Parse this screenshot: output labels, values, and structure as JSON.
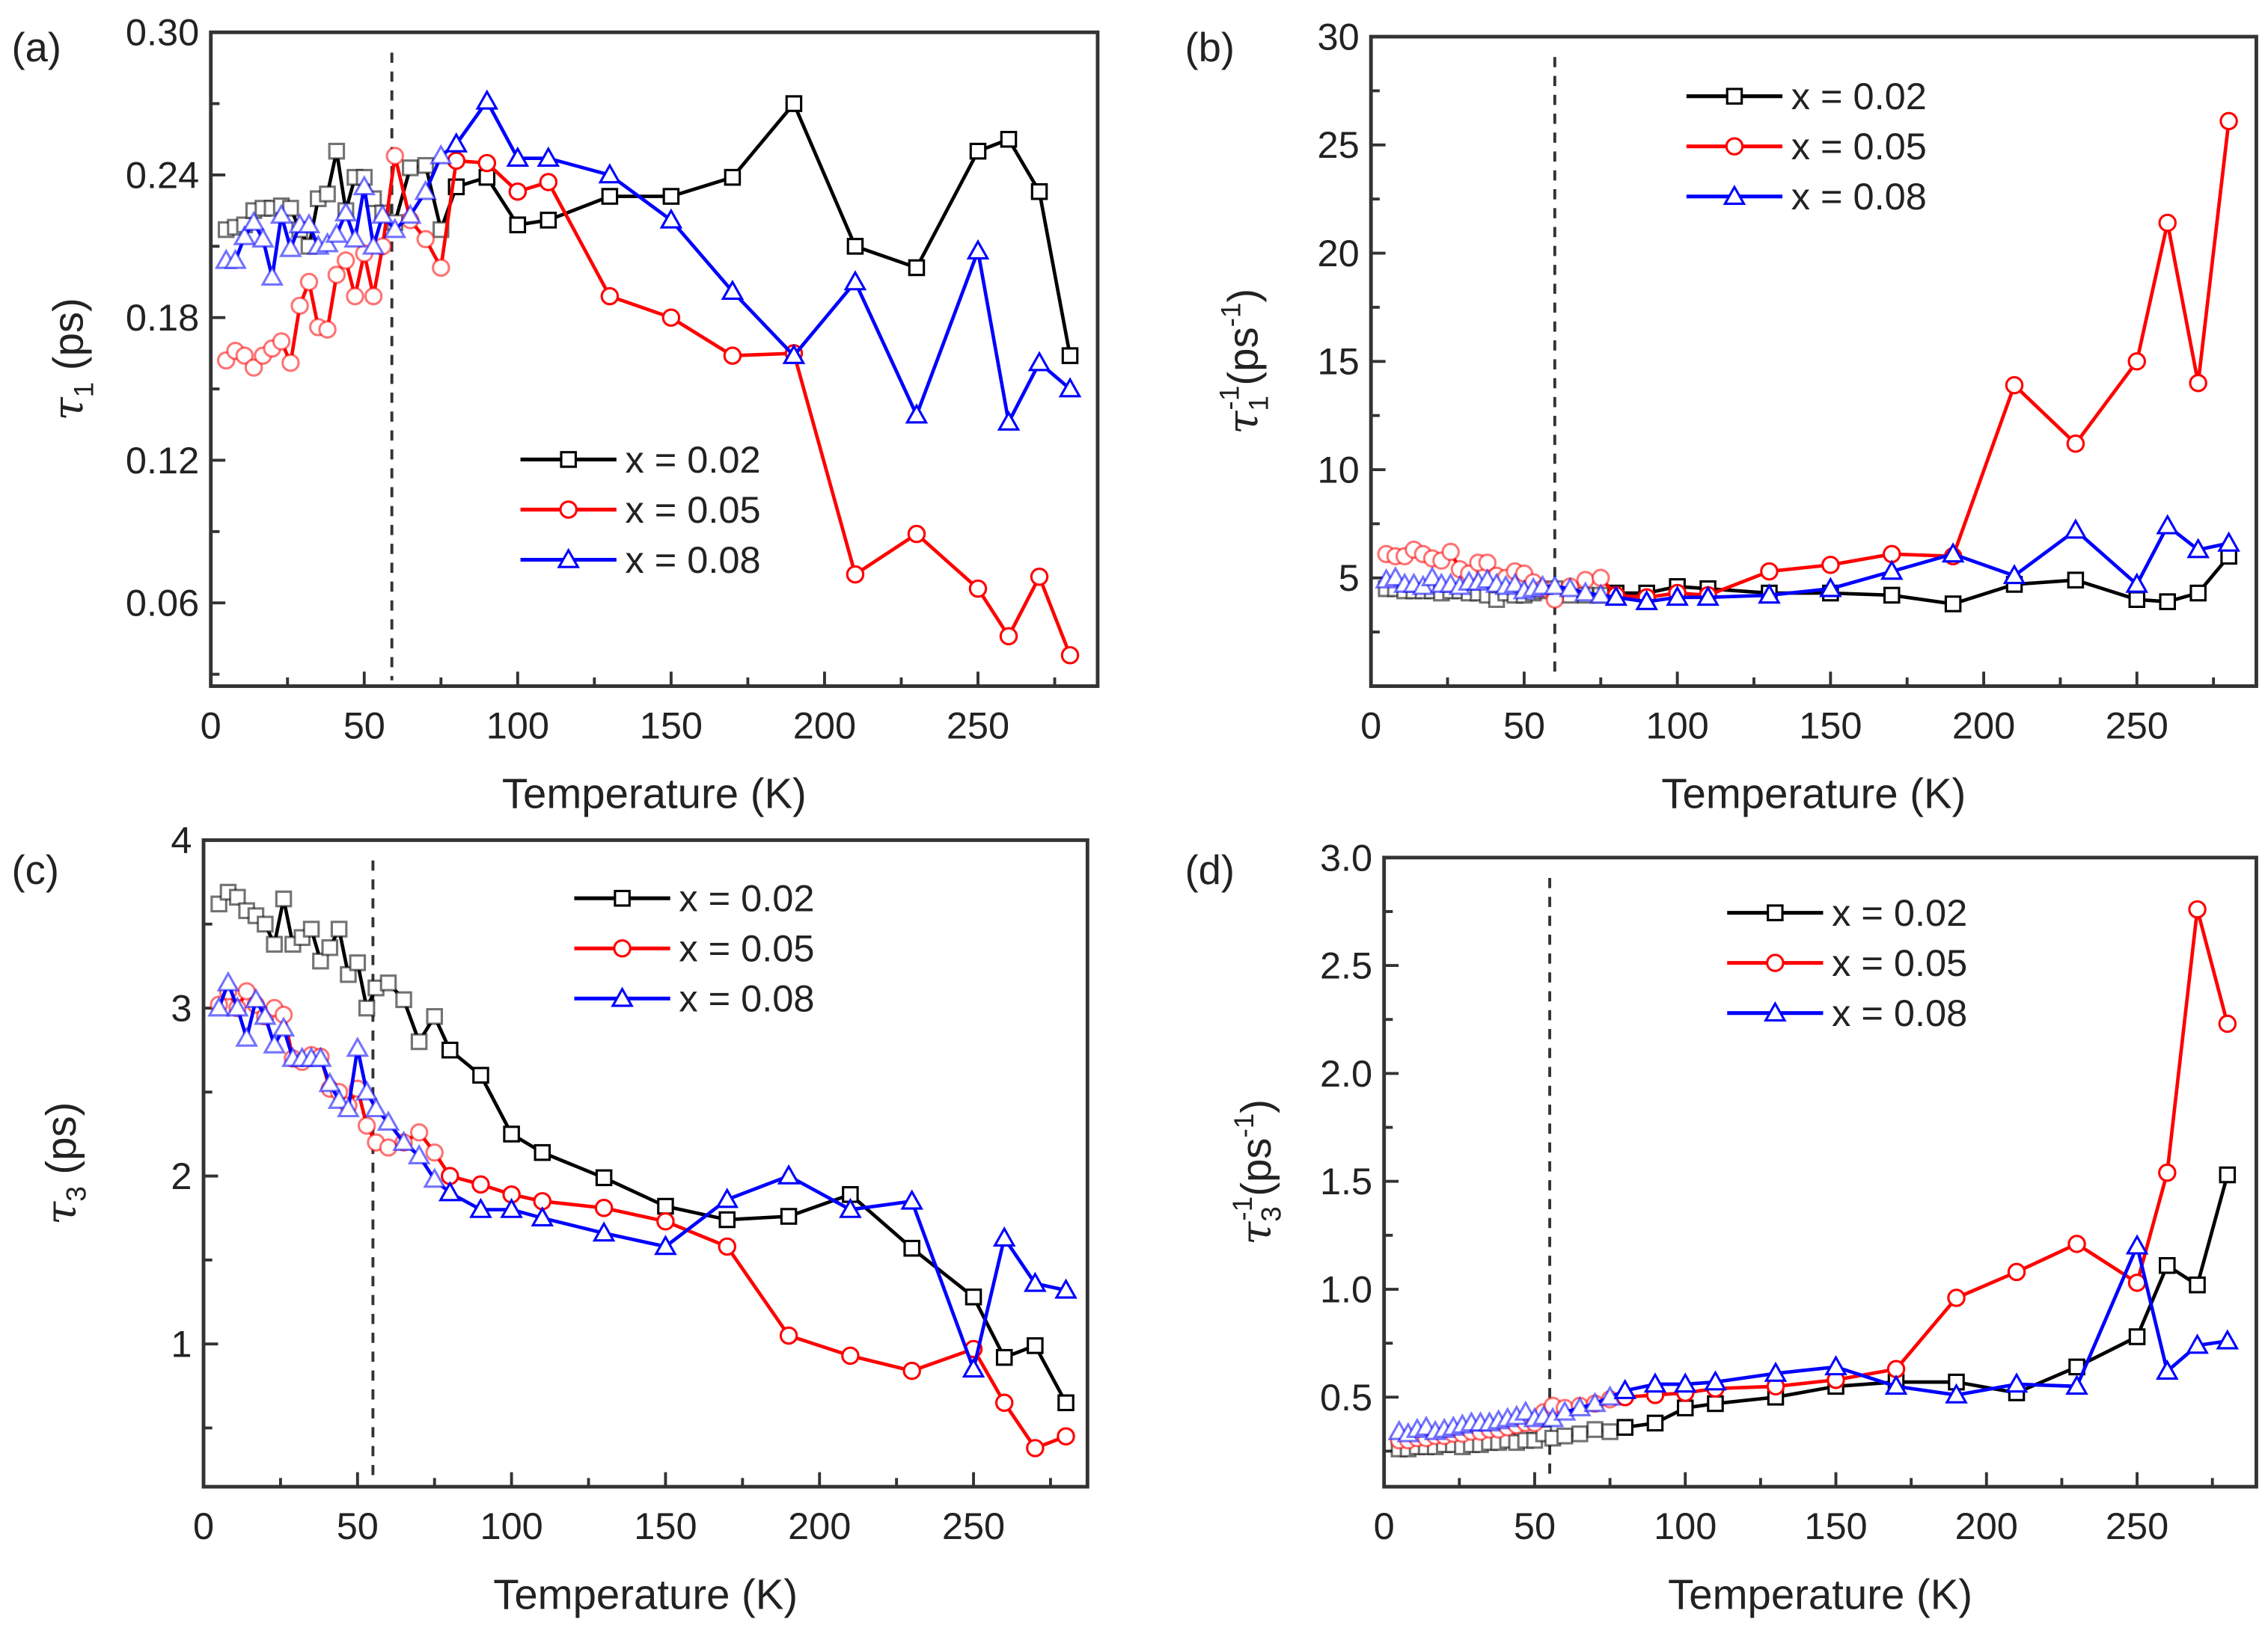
{
  "colors": {
    "x002": "#000000",
    "x005": "#ff0000",
    "x008": "#0000ff",
    "axis": "#333333"
  },
  "chart_data": [
    {
      "panel": "(a)",
      "type": "line",
      "xlabel": "Temperature (K)",
      "ylabel": {
        "symbol": "τ",
        "sub": "1",
        "sup": "",
        "unit": " (ps)",
        "unit_sup": ""
      },
      "xlim": [
        0,
        289
      ],
      "ylim": [
        0.025,
        0.3
      ],
      "xticks": [
        "0",
        "50",
        "100",
        "150",
        "200",
        "250"
      ],
      "yticks": [
        "0.06",
        "0.12",
        "0.18",
        "0.24",
        "0.30"
      ],
      "vline": 59,
      "legend_position": "center-right",
      "x": [
        5,
        8,
        11,
        14,
        17,
        20,
        23,
        26,
        29,
        32,
        35,
        38,
        41,
        44,
        47,
        50,
        53,
        56,
        60,
        65,
        70,
        75,
        80,
        90,
        100,
        110,
        130,
        150,
        170,
        190,
        210,
        230,
        250,
        260,
        270,
        280
      ],
      "series": [
        {
          "name": "x = 0.02",
          "marker": "square",
          "color_key": "x002",
          "values": [
            0.217,
            0.218,
            0.219,
            0.225,
            0.226,
            0.226,
            0.227,
            0.226,
            0.217,
            0.21,
            0.23,
            0.232,
            0.25,
            0.225,
            0.239,
            0.239,
            0.23,
            0.224,
            0.22,
            0.243,
            0.244,
            0.217,
            0.235,
            0.239,
            0.219,
            0.221,
            0.231,
            0.231,
            0.239,
            0.27,
            0.21,
            0.201,
            0.25,
            0.255,
            0.233,
            0.164
          ]
        },
        {
          "name": "x = 0.05",
          "marker": "circle",
          "color_key": "x005",
          "values": [
            0.162,
            0.166,
            0.164,
            0.159,
            0.164,
            0.167,
            0.17,
            0.161,
            0.185,
            0.195,
            0.176,
            0.175,
            0.198,
            0.204,
            0.189,
            0.207,
            0.189,
            0.21,
            0.248,
            0.221,
            0.213,
            0.201,
            0.246,
            0.245,
            0.233,
            0.237,
            0.189,
            0.18,
            0.164,
            0.165,
            0.072,
            0.089,
            0.066,
            0.046,
            0.071,
            0.038
          ]
        },
        {
          "name": "x = 0.08",
          "marker": "triangle",
          "color_key": "x008",
          "values": [
            0.204,
            0.204,
            0.214,
            0.22,
            0.213,
            0.197,
            0.223,
            0.209,
            0.219,
            0.219,
            0.21,
            0.211,
            0.215,
            0.224,
            0.213,
            0.235,
            0.21,
            0.223,
            0.217,
            0.223,
            0.233,
            0.248,
            0.253,
            0.271,
            0.247,
            0.247,
            0.24,
            0.221,
            0.191,
            0.164,
            0.195,
            0.139,
            0.208,
            0.136,
            0.161,
            0.15
          ]
        }
      ]
    },
    {
      "panel": "(b)",
      "type": "line",
      "xlabel": "Temperature (K)",
      "ylabel": {
        "symbol": "τ",
        "sub": "1",
        "sup": "-1",
        "unit": "(ps",
        "unit_sup": "-1",
        "unit_end": ")"
      },
      "xlim": [
        0,
        289
      ],
      "ylim": [
        0,
        30
      ],
      "xticks": [
        "0",
        "50",
        "100",
        "150",
        "200",
        "250"
      ],
      "yticks": [
        "5",
        "10",
        "15",
        "20",
        "25",
        "30"
      ],
      "vline": 60,
      "legend_position": "top-center",
      "x": [
        5,
        8,
        11,
        14,
        17,
        20,
        23,
        26,
        29,
        32,
        35,
        38,
        41,
        44,
        47,
        50,
        53,
        56,
        60,
        65,
        70,
        75,
        80,
        90,
        100,
        110,
        130,
        150,
        170,
        190,
        210,
        230,
        250,
        260,
        270,
        280
      ],
      "series": [
        {
          "name": "x = 0.02",
          "marker": "square",
          "color_key": "x002",
          "values": [
            4.5,
            4.5,
            4.4,
            4.4,
            4.4,
            4.4,
            4.3,
            4.4,
            4.4,
            4.3,
            4.3,
            4.2,
            4.0,
            4.3,
            4.2,
            4.2,
            4.3,
            4.4,
            4.5,
            4.2,
            4.2,
            4.2,
            4.3,
            4.3,
            4.6,
            4.5,
            4.3,
            4.3,
            4.2,
            3.8,
            4.7,
            4.9,
            4.0,
            3.9,
            4.3,
            6.0
          ]
        },
        {
          "name": "x = 0.05",
          "marker": "circle",
          "color_key": "x005",
          "values": [
            6.1,
            6.0,
            6.0,
            6.3,
            6.1,
            5.9,
            5.8,
            6.2,
            5.4,
            5.2,
            5.7,
            5.7,
            5.1,
            5.0,
            5.3,
            5.2,
            4.8,
            4.5,
            4.0,
            4.6,
            4.9,
            5.0,
            4.2,
            4.1,
            4.3,
            4.2,
            5.3,
            5.6,
            6.1,
            6.0,
            13.9,
            11.2,
            15.0,
            21.4,
            14.0,
            26.1
          ]
        },
        {
          "name": "x = 0.08",
          "marker": "triangle",
          "color_key": "x008",
          "values": [
            4.9,
            5.0,
            4.7,
            4.7,
            4.6,
            5.0,
            4.7,
            4.7,
            4.6,
            4.8,
            4.8,
            4.9,
            4.7,
            4.6,
            4.7,
            4.4,
            4.5,
            4.6,
            4.6,
            4.5,
            4.3,
            4.2,
            4.1,
            3.9,
            4.1,
            4.1,
            4.2,
            4.5,
            5.3,
            6.1,
            5.1,
            7.2,
            4.7,
            7.4,
            6.3,
            6.6
          ]
        }
      ]
    },
    {
      "panel": "(c)",
      "type": "line",
      "xlabel": "Temperature (K)",
      "ylabel": {
        "symbol": "τ",
        "sub": "3",
        "sup": "",
        "unit": " (ps)",
        "unit_sup": ""
      },
      "xlim": [
        0,
        287
      ],
      "ylim": [
        0.15,
        4
      ],
      "xticks": [
        "0",
        "50",
        "100",
        "150",
        "200",
        "250"
      ],
      "yticks": [
        "1",
        "2",
        "3",
        "4"
      ],
      "vline": 55,
      "legend_position": "top-right",
      "x": [
        5,
        8,
        11,
        14,
        17,
        20,
        23,
        26,
        29,
        32,
        35,
        38,
        41,
        44,
        47,
        50,
        53,
        56,
        60,
        65,
        70,
        75,
        80,
        90,
        100,
        110,
        130,
        150,
        170,
        190,
        210,
        230,
        250,
        260,
        270,
        280
      ],
      "series": [
        {
          "name": "x = 0.02",
          "marker": "square",
          "color_key": "x002",
          "values": [
            3.62,
            3.69,
            3.66,
            3.58,
            3.55,
            3.5,
            3.38,
            3.65,
            3.38,
            3.42,
            3.47,
            3.28,
            3.36,
            3.47,
            3.2,
            3.27,
            3.0,
            3.12,
            3.15,
            3.05,
            2.8,
            2.95,
            2.75,
            2.6,
            2.25,
            2.14,
            1.99,
            1.82,
            1.74,
            1.76,
            1.89,
            1.57,
            1.28,
            0.92,
            0.99,
            0.65
          ]
        },
        {
          "name": "x = 0.05",
          "marker": "circle",
          "color_key": "x005",
          "values": [
            3.02,
            3.1,
            3.0,
            3.1,
            3.02,
            2.95,
            3.0,
            2.96,
            2.7,
            2.68,
            2.72,
            2.71,
            2.52,
            2.5,
            2.42,
            2.52,
            2.3,
            2.2,
            2.17,
            2.2,
            2.26,
            2.14,
            2.0,
            1.95,
            1.89,
            1.85,
            1.81,
            1.73,
            1.58,
            1.05,
            0.93,
            0.84,
            0.97,
            0.65,
            0.38,
            0.45
          ]
        },
        {
          "name": "x = 0.08",
          "marker": "triangle",
          "color_key": "x008",
          "values": [
            3.0,
            3.15,
            3.0,
            2.82,
            3.05,
            2.95,
            2.78,
            2.88,
            2.7,
            2.7,
            2.7,
            2.7,
            2.55,
            2.45,
            2.4,
            2.76,
            2.5,
            2.4,
            2.32,
            2.2,
            2.12,
            1.98,
            1.9,
            1.8,
            1.8,
            1.75,
            1.66,
            1.58,
            1.86,
            2.0,
            1.8,
            1.85,
            0.85,
            1.63,
            1.36,
            1.32
          ]
        }
      ]
    },
    {
      "panel": "(d)",
      "type": "line",
      "xlabel": "Temperature (K)",
      "ylabel": {
        "symbol": "τ",
        "sub": "3",
        "sup": "-1",
        "unit": "(ps",
        "unit_sup": "-1",
        "unit_end": ")"
      },
      "xlim": [
        0,
        289.6
      ],
      "ylim": [
        0.085,
        3.0
      ],
      "xticks": [
        "0",
        "50",
        "100",
        "150",
        "200",
        "250"
      ],
      "yticks": [
        "0.5",
        "1.0",
        "1.5",
        "2.0",
        "2.5",
        "3.0"
      ],
      "vline": 55,
      "legend_position": "top-center",
      "x": [
        5,
        8,
        11,
        14,
        17,
        20,
        23,
        26,
        29,
        32,
        35,
        38,
        41,
        44,
        47,
        50,
        53,
        56,
        60,
        65,
        70,
        75,
        80,
        90,
        100,
        110,
        130,
        150,
        170,
        190,
        210,
        230,
        250,
        260,
        270,
        280
      ],
      "series": [
        {
          "name": "x = 0.02",
          "marker": "square",
          "color_key": "x002",
          "values": [
            0.26,
            0.26,
            0.27,
            0.27,
            0.27,
            0.28,
            0.28,
            0.27,
            0.28,
            0.28,
            0.29,
            0.29,
            0.3,
            0.29,
            0.3,
            0.3,
            0.33,
            0.31,
            0.32,
            0.33,
            0.35,
            0.34,
            0.36,
            0.38,
            0.45,
            0.47,
            0.5,
            0.55,
            0.57,
            0.57,
            0.52,
            0.64,
            0.78,
            1.11,
            1.02,
            1.53
          ]
        },
        {
          "name": "x = 0.05",
          "marker": "circle",
          "color_key": "x005",
          "values": [
            0.3,
            0.3,
            0.31,
            0.31,
            0.32,
            0.32,
            0.33,
            0.33,
            0.34,
            0.34,
            0.35,
            0.35,
            0.36,
            0.37,
            0.38,
            0.38,
            0.43,
            0.46,
            0.45,
            0.46,
            0.47,
            0.49,
            0.5,
            0.51,
            0.52,
            0.54,
            0.55,
            0.58,
            0.63,
            0.96,
            1.08,
            1.21,
            1.03,
            1.54,
            2.76,
            2.23
          ]
        },
        {
          "name": "x = 0.08",
          "marker": "triangle",
          "color_key": "x008",
          "values": [
            0.34,
            0.33,
            0.35,
            0.36,
            0.34,
            0.35,
            0.36,
            0.37,
            0.38,
            0.38,
            0.38,
            0.39,
            0.4,
            0.41,
            0.43,
            0.4,
            0.41,
            0.4,
            0.43,
            0.45,
            0.47,
            0.5,
            0.53,
            0.56,
            0.56,
            0.57,
            0.61,
            0.64,
            0.55,
            0.51,
            0.56,
            0.55,
            1.2,
            0.62,
            0.74,
            0.76
          ]
        }
      ]
    }
  ]
}
